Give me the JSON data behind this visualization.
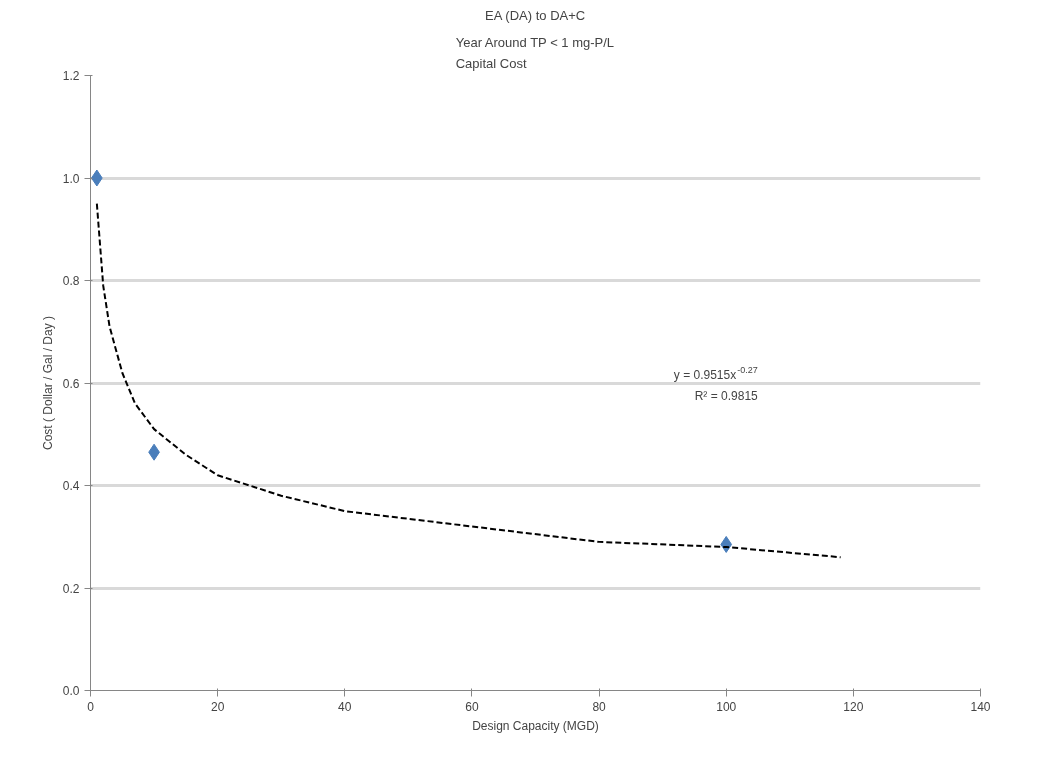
{
  "chart_data": {
    "type": "scatter",
    "title": "EA (DA) to DA+C",
    "subtitle": "Year Around TP < 1 mg-P/L\nCapital Cost",
    "xlabel": "Design Capacity (MGD)",
    "ylabel": "Cost ( Dollar / Gal / Day )",
    "annotations": [
      "y = 0.9515x$^{-0.27}$",
      "R² = 0.9815"
    ],
    "series": [
      {
        "color": "#4a7ebb",
        "marker": "diamond",
        "x": [
          1,
          10,
          100
        ],
        "values": [
          1.0,
          0.465,
          0.285
        ]
      },
      {
        "type": "line",
        "color": "#000000",
        "line_style": "dashed",
        "marker": "none",
        "x": [
          1,
          2,
          3,
          5,
          7,
          10,
          15,
          20,
          30,
          40,
          60,
          80,
          100,
          118
        ],
        "values": [
          0.95,
          0.79,
          0.71,
          0.62,
          0.56,
          0.51,
          0.46,
          0.42,
          0.38,
          0.35,
          0.32,
          0.29,
          0.28,
          0.26
        ]
      }
    ],
    "xlim": [
      0,
      140
    ],
    "xticks": [
      0,
      20,
      40,
      60,
      80,
      100,
      120,
      140
    ],
    "ylim": [
      0,
      1.2
    ],
    "yticks": [
      {
        "value": 0,
        "label": "0.0"
      },
      0.2,
      0.4,
      0.6,
      0.8,
      {
        "value": 1,
        "label": "1.0"
      },
      1.2
    ],
    "grid": "y"
  }
}
